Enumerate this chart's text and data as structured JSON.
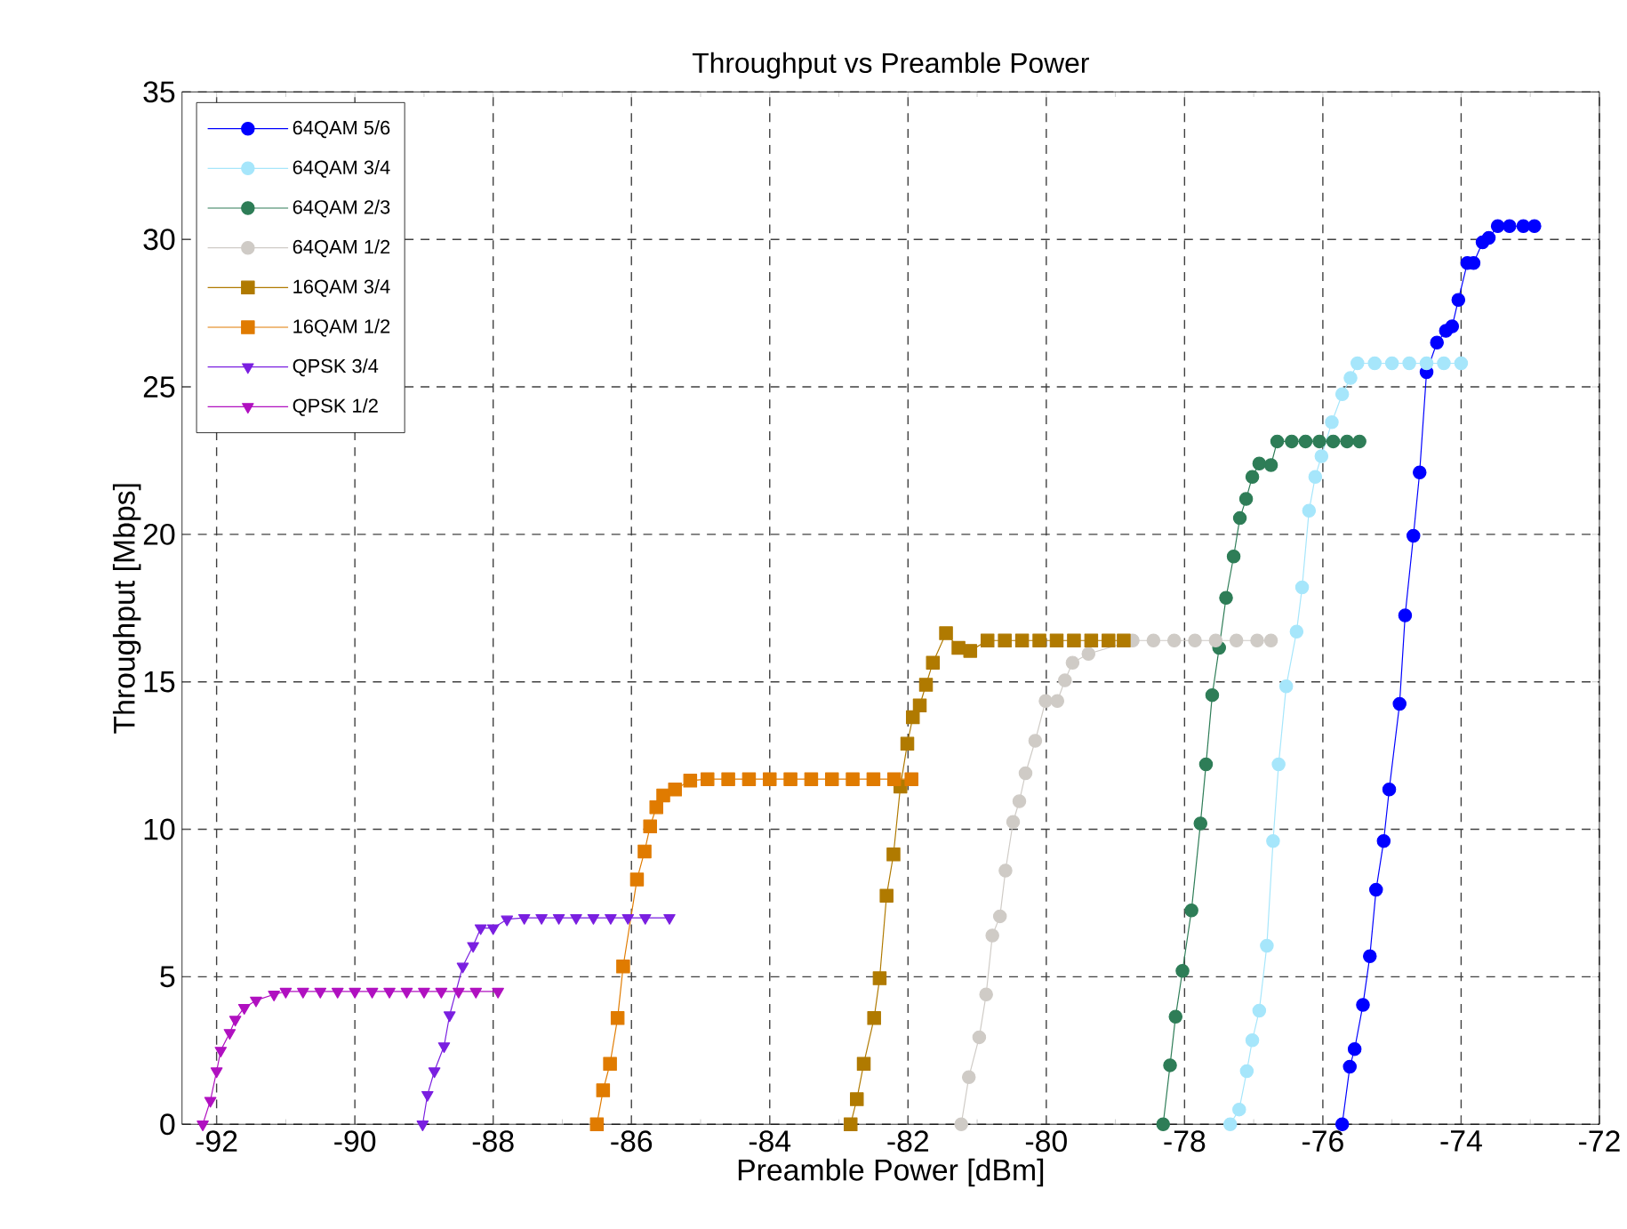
{
  "chart_data": {
    "type": "line",
    "title": "Throughput vs Preamble Power",
    "xlabel": "Preamble Power [dBm]",
    "ylabel": "Throughput [Mbps]",
    "xlim": [
      -92.5,
      -72
    ],
    "xticks": [
      -92,
      -90,
      -88,
      -86,
      -84,
      -82,
      -80,
      -78,
      -76,
      -74,
      -72
    ],
    "ylim": [
      0,
      35
    ],
    "yticks": [
      0,
      5,
      10,
      15,
      20,
      25,
      30,
      35
    ],
    "grid": true,
    "legend": "top left",
    "line_style": "solid",
    "series": [
      {
        "name": "64QAM 5/6",
        "color": "#0000ff",
        "marker": "circle",
        "x": [
          -75.72,
          -75.61,
          -75.54,
          -75.42,
          -75.32,
          -75.23,
          -75.12,
          -75.04,
          -74.89,
          -74.81,
          -74.69,
          -74.6,
          -74.5,
          -74.35,
          -74.22,
          -74.13,
          -74.04,
          -73.91,
          -73.82,
          -73.69,
          -73.6,
          -73.47,
          -73.3,
          -73.1,
          -72.94
        ],
        "values": [
          0,
          1.95,
          2.55,
          4.05,
          5.7,
          7.95,
          9.6,
          11.35,
          14.25,
          17.25,
          19.95,
          22.1,
          25.5,
          26.5,
          26.9,
          27.05,
          27.95,
          29.2,
          29.2,
          29.9,
          30.05,
          30.45,
          30.45,
          30.45,
          30.45
        ]
      },
      {
        "name": "64QAM 3/4",
        "color": "#a6e6fb",
        "marker": "circle",
        "x": [
          -77.34,
          -77.21,
          -77.1,
          -77.02,
          -76.92,
          -76.81,
          -76.72,
          -76.64,
          -76.53,
          -76.38,
          -76.3,
          -76.2,
          -76.11,
          -76.02,
          -75.87,
          -75.72,
          -75.6,
          -75.5,
          -75.25,
          -75.0,
          -74.75,
          -74.5,
          -74.25,
          -74.0
        ],
        "values": [
          0,
          0.5,
          1.8,
          2.85,
          3.85,
          6.05,
          9.6,
          12.2,
          14.85,
          16.7,
          18.2,
          20.8,
          21.95,
          22.65,
          23.8,
          24.75,
          25.3,
          25.8,
          25.8,
          25.8,
          25.8,
          25.8,
          25.8,
          25.8
        ]
      },
      {
        "name": "64QAM 2/3",
        "color": "#2e7d57",
        "marker": "circle",
        "x": [
          -78.31,
          -78.21,
          -78.13,
          -78.03,
          -77.9,
          -77.77,
          -77.69,
          -77.6,
          -77.5,
          -77.4,
          -77.29,
          -77.2,
          -77.11,
          -77.02,
          -76.92,
          -76.75,
          -76.66,
          -76.45,
          -76.25,
          -76.05,
          -75.85,
          -75.65,
          -75.47
        ],
        "values": [
          0,
          2.0,
          3.65,
          5.2,
          7.25,
          10.2,
          12.2,
          14.55,
          16.15,
          17.85,
          19.25,
          20.55,
          21.2,
          21.95,
          22.4,
          22.35,
          23.15,
          23.15,
          23.15,
          23.15,
          23.15,
          23.15,
          23.15
        ]
      },
      {
        "name": "64QAM 1/2",
        "color": "#cfcbc6",
        "marker": "circle",
        "x": [
          -81.23,
          -81.12,
          -80.97,
          -80.87,
          -80.78,
          -80.67,
          -80.59,
          -80.48,
          -80.39,
          -80.3,
          -80.16,
          -80.01,
          -79.84,
          -79.73,
          -79.62,
          -79.39,
          -79.05,
          -78.75,
          -78.45,
          -78.15,
          -77.85,
          -77.55,
          -77.25,
          -76.95,
          -76.75
        ],
        "values": [
          0,
          1.6,
          2.95,
          4.4,
          6.4,
          7.05,
          8.6,
          10.25,
          10.95,
          11.9,
          13.0,
          14.35,
          14.35,
          15.05,
          15.65,
          15.95,
          null,
          16.4,
          16.4,
          16.4,
          16.4,
          16.4,
          16.4,
          16.4,
          16.4
        ]
      },
      {
        "name": "16QAM 3/4",
        "color": "#b07a00",
        "marker": "square",
        "x": [
          -82.83,
          -82.74,
          -82.64,
          -82.49,
          -82.41,
          -82.31,
          -82.21,
          -82.11,
          -82.01,
          -81.93,
          -81.83,
          -81.74,
          -81.64,
          -81.45,
          -81.27,
          -81.1,
          -80.85,
          -80.6,
          -80.35,
          -80.1,
          -79.85,
          -79.6,
          -79.35,
          -79.1,
          -78.88
        ],
        "values": [
          0,
          0.85,
          2.05,
          3.6,
          4.95,
          7.75,
          9.15,
          11.45,
          12.9,
          13.8,
          14.2,
          14.9,
          15.65,
          16.65,
          16.15,
          16.05,
          16.4,
          16.4,
          16.4,
          16.4,
          16.4,
          16.4,
          16.4,
          16.4,
          16.4
        ]
      },
      {
        "name": "16QAM 1/2",
        "color": "#e07b00",
        "marker": "square",
        "x": [
          -86.5,
          -86.41,
          -86.31,
          -86.2,
          -86.12,
          -85.92,
          -85.81,
          -85.73,
          -85.64,
          -85.54,
          -85.37,
          -85.15,
          -84.9,
          -84.6,
          -84.3,
          -84.0,
          -83.7,
          -83.4,
          -83.1,
          -82.8,
          -82.5,
          -82.2,
          -81.95
        ],
        "values": [
          0,
          1.15,
          2.05,
          3.6,
          5.35,
          8.3,
          9.25,
          10.1,
          10.75,
          11.15,
          11.35,
          11.65,
          11.7,
          11.7,
          11.7,
          11.7,
          11.7,
          11.7,
          11.7,
          11.7,
          11.7,
          11.7,
          11.7
        ]
      },
      {
        "name": "QPSK 3/4",
        "color": "#7a1fe0",
        "marker": "triangle",
        "x": [
          -89.02,
          -88.95,
          -88.85,
          -88.71,
          -88.63,
          -88.44,
          -88.29,
          -88.18,
          -88.0,
          -87.8,
          -87.55,
          -87.3,
          -87.05,
          -86.8,
          -86.55,
          -86.3,
          -86.05,
          -85.8,
          -85.45
        ],
        "values": [
          0,
          1.0,
          1.8,
          2.65,
          3.7,
          5.35,
          6.05,
          6.65,
          6.65,
          6.95,
          7,
          7,
          7,
          7,
          7,
          7,
          7,
          7,
          7
        ]
      },
      {
        "name": "QPSK 1/2",
        "color": "#b010c0",
        "marker": "triangle",
        "x": [
          -92.2,
          -92.09,
          -92.0,
          -91.94,
          -91.81,
          -91.73,
          -91.6,
          -91.43,
          -91.17,
          -91.0,
          -90.75,
          -90.5,
          -90.25,
          -90.0,
          -89.75,
          -89.5,
          -89.25,
          -89.0,
          -88.75,
          -88.5,
          -88.25,
          -87.93
        ],
        "values": [
          0,
          0.8,
          1.8,
          2.5,
          3.1,
          3.55,
          3.95,
          4.2,
          4.4,
          4.5,
          4.5,
          4.5,
          4.5,
          4.5,
          4.5,
          4.5,
          4.5,
          4.5,
          4.5,
          4.5,
          4.5,
          4.5
        ]
      }
    ]
  }
}
